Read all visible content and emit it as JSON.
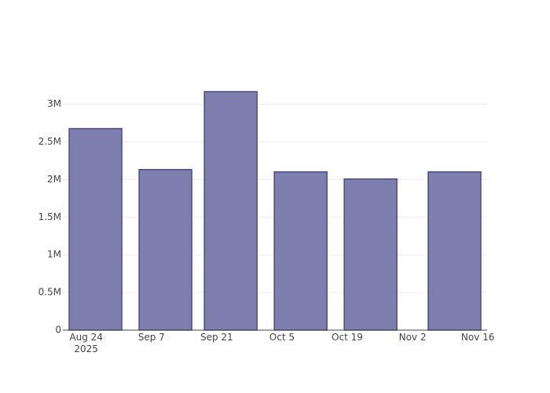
{
  "chart_data": {
    "type": "bar",
    "x": [
      "2025-08-26",
      "2025-09-10",
      "2025-09-24",
      "2025-10-09",
      "2025-10-24",
      "2025-11-11"
    ],
    "values": [
      2676000,
      2132000,
      3167000,
      2101000,
      2007000,
      2101000
    ],
    "color": "#7f7faf",
    "line_color": "#4b4b88",
    "xlim": [
      "2025-08-19",
      "2025-11-18"
    ],
    "xticks": [
      {
        "value": "2025-08-24",
        "label": "Aug 24\n2025"
      },
      {
        "value": "2025-09-07",
        "label": "Sep 7"
      },
      {
        "value": "2025-09-21",
        "label": "Sep 21"
      },
      {
        "value": "2025-10-05",
        "label": "Oct 5"
      },
      {
        "value": "2025-10-19",
        "label": "Oct 19"
      },
      {
        "value": "2025-11-02",
        "label": "Nov 2"
      },
      {
        "value": "2025-11-16",
        "label": "Nov 16"
      }
    ],
    "ylim": [
      0,
      3340000
    ],
    "yticks": [
      0,
      {
        "value": 500000,
        "label": "0.5M"
      },
      {
        "value": 1000000,
        "label": "1M"
      },
      {
        "value": 1500000,
        "label": "1.5M"
      },
      {
        "value": 2000000,
        "label": "2M"
      },
      {
        "value": 2500000,
        "label": "2.5M"
      },
      {
        "value": 3000000,
        "label": "3M"
      }
    ],
    "grid": true
  }
}
